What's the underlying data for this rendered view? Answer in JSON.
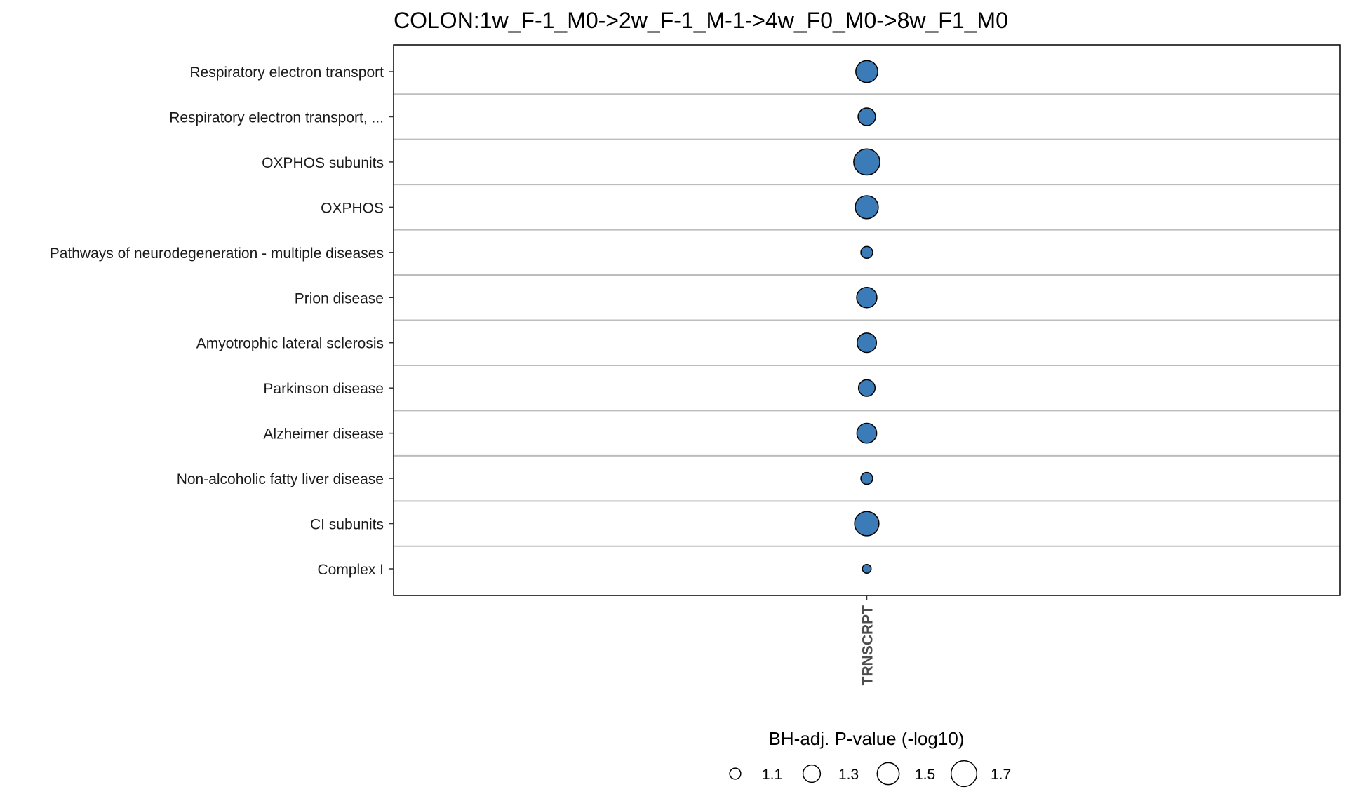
{
  "chart_data": {
    "type": "scatter",
    "title": "COLON:1w_F-1_M0->2w_F-1_M-1->4w_F0_M0->8w_F1_M0",
    "xlabel": "",
    "ylabel": "",
    "x_categories": [
      "TRNSCRPT"
    ],
    "y_categories": [
      "Respiratory electron transport",
      "Respiratory electron transport, ...",
      "OXPHOS subunits",
      "OXPHOS",
      "Pathways of neurodegeneration - multiple diseases",
      "Prion disease",
      "Amyotrophic lateral sclerosis",
      "Parkinson disease",
      "Alzheimer disease",
      "Non-alcoholic fatty liver disease",
      "CI subunits",
      "Complex I"
    ],
    "points": [
      {
        "x": "TRNSCRPT",
        "y": "Respiratory electron transport",
        "size_value": 1.5
      },
      {
        "x": "TRNSCRPT",
        "y": "Respiratory electron transport, ...",
        "size_value": 1.3
      },
      {
        "x": "TRNSCRPT",
        "y": "OXPHOS subunits",
        "size_value": 1.72
      },
      {
        "x": "TRNSCRPT",
        "y": "OXPHOS",
        "size_value": 1.55
      },
      {
        "x": "TRNSCRPT",
        "y": "Pathways of neurodegeneration - multiple diseases",
        "size_value": 1.12
      },
      {
        "x": "TRNSCRPT",
        "y": "Prion disease",
        "size_value": 1.42
      },
      {
        "x": "TRNSCRPT",
        "y": "Amyotrophic lateral sclerosis",
        "size_value": 1.38
      },
      {
        "x": "TRNSCRPT",
        "y": "Parkinson disease",
        "size_value": 1.27
      },
      {
        "x": "TRNSCRPT",
        "y": "Alzheimer disease",
        "size_value": 1.4
      },
      {
        "x": "TRNSCRPT",
        "y": "Non-alcoholic fatty liver disease",
        "size_value": 1.12
      },
      {
        "x": "TRNSCRPT",
        "y": "CI subunits",
        "size_value": 1.62
      },
      {
        "x": "TRNSCRPT",
        "y": "Complex I",
        "size_value": 1.05
      }
    ],
    "size_legend": {
      "title": "BH-adj. P-value (-log10)",
      "values": [
        1.1,
        1.3,
        1.5,
        1.7
      ],
      "labels": [
        "1.1",
        "1.3",
        "1.5",
        "1.7"
      ],
      "placement": "bottom"
    },
    "point_color": "#3a7bb8",
    "point_outline": "#000000",
    "grid": "horizontal"
  }
}
